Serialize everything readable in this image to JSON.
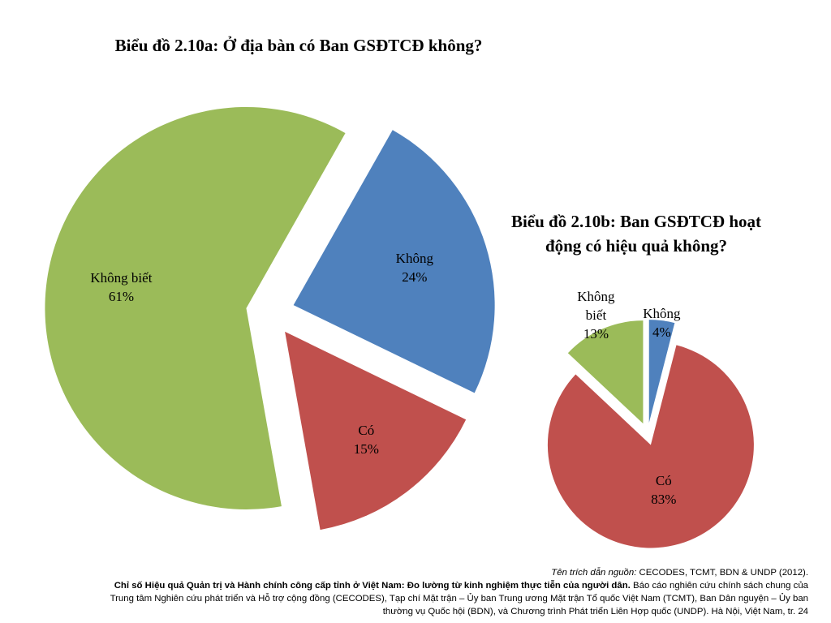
{
  "chart_data": [
    {
      "type": "pie",
      "title": "Biểu đồ 2.10a: Ở địa bàn có Ban GSĐTCĐ không?",
      "exploded": true,
      "slices": [
        {
          "label": "Không",
          "value": 24,
          "pct_label": "24%",
          "color": "#4F81BD"
        },
        {
          "label": "Có",
          "value": 15,
          "pct_label": "15%",
          "color": "#C0504D"
        },
        {
          "label": "Không biết",
          "value": 61,
          "pct_label": "61%",
          "color": "#9BBB59"
        }
      ]
    },
    {
      "type": "pie",
      "title": "Biểu đồ 2.10b: Ban GSĐTCĐ hoạt động có hiệu quả không?",
      "exploded": true,
      "slices": [
        {
          "label": "Không",
          "value": 4,
          "pct_label": "4%",
          "color": "#4F81BD"
        },
        {
          "label": "Có",
          "value": 83,
          "pct_label": "83%",
          "color": "#C0504D"
        },
        {
          "label": "Không biết",
          "value": 13,
          "pct_label": "13%",
          "color": "#9BBB59"
        }
      ]
    }
  ],
  "titles": {
    "a": "Biểu đồ 2.10a: Ở địa bàn có Ban GSĐTCĐ không?",
    "b_line1": "Biểu đồ 2.10b: Ban GSĐTCĐ hoạt",
    "b_line2": "động có hiệu quả không?"
  },
  "footer": {
    "source_label": "Tên trích dẫn nguồn:",
    "source_text": " CECODES, TCMT, BDN & UNDP (2012).",
    "report_title": "Chỉ số Hiệu quả Quản trị và Hành chính công cấp tỉnh ở Việt Nam: Đo lường từ kinh nghiệm thực tiễn của người dân.",
    "report_desc1": " Báo cáo nghiên cứu chính sách chung của",
    "report_desc2": "Trung tâm Nghiên cứu phát triển và Hỗ trợ cộng đồng (CECODES), Tạp chí Mặt trận – Ủy ban Trung ương Mặt trận Tổ quốc Việt Nam (TCMT), Ban Dân nguyện – Ủy ban",
    "report_desc3": "thường vụ Quốc hội (BDN), và Chương trình Phát triển Liên Hợp quốc (UNDP). Hà Nội, Việt Nam, tr. 24"
  }
}
